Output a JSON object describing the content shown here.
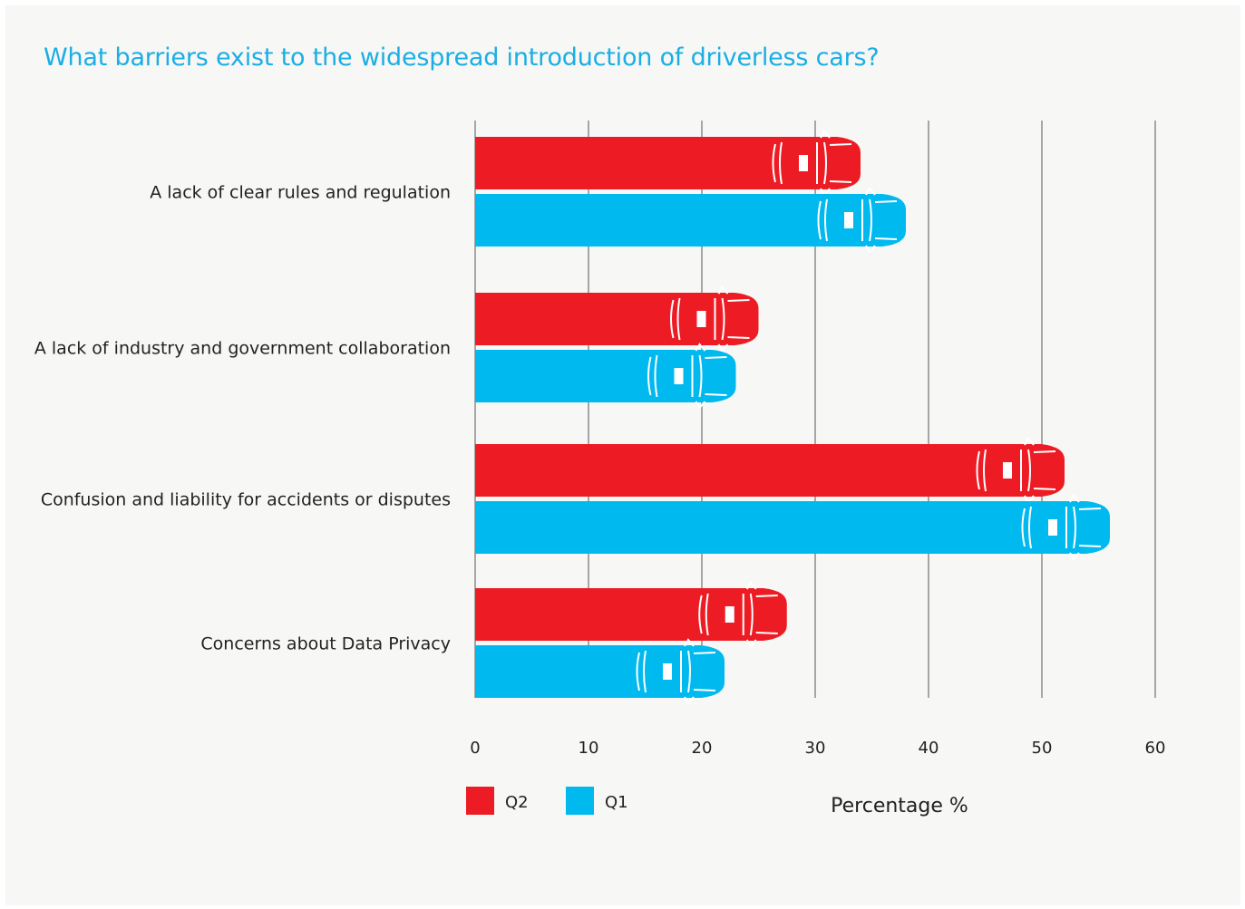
{
  "chart_data": {
    "type": "bar",
    "orientation": "horizontal",
    "title": "What barriers exist to the widespread introduction of driverless cars?",
    "xlabel": "Percentage %",
    "ylabel": "",
    "xlim": [
      0,
      60
    ],
    "xticks": [
      0,
      10,
      20,
      30,
      40,
      50,
      60
    ],
    "grid": true,
    "legend_position": "bottom-left",
    "categories": [
      "A lack of clear rules and regulation",
      "A lack of industry and government collaboration",
      "Confusion and liability for accidents or disputes",
      "Concerns about Data Privacy"
    ],
    "series": [
      {
        "name": "Q2",
        "color": "#ed1c24",
        "values": [
          34,
          25,
          52,
          27.5
        ]
      },
      {
        "name": "Q1",
        "color": "#00b9ef",
        "values": [
          38,
          23,
          56,
          22
        ]
      }
    ]
  }
}
